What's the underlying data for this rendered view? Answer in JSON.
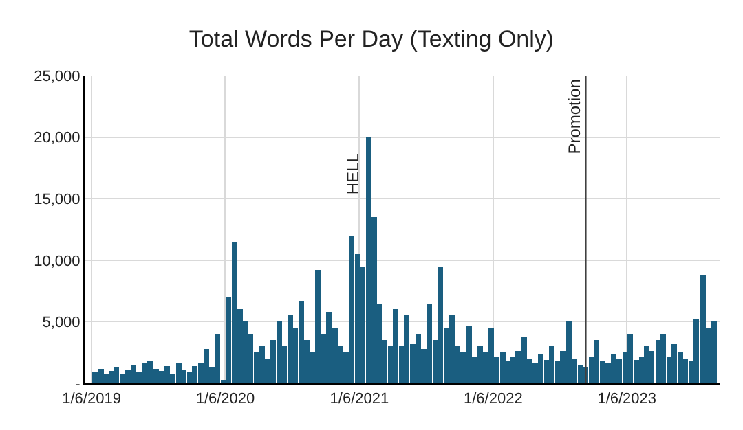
{
  "chart_data": {
    "type": "bar",
    "title": "Total Words Per Day (Texting Only)",
    "x": [
      "2019-01-15",
      "2019-02-01",
      "2019-02-15",
      "2019-03-01",
      "2019-03-15",
      "2019-04-01",
      "2019-04-15",
      "2019-05-01",
      "2019-05-15",
      "2019-06-01",
      "2019-06-15",
      "2019-07-01",
      "2019-07-15",
      "2019-08-01",
      "2019-08-15",
      "2019-09-01",
      "2019-09-15",
      "2019-10-01",
      "2019-10-15",
      "2019-11-01",
      "2019-11-15",
      "2019-12-01",
      "2019-12-15",
      "2020-01-01",
      "2020-01-15",
      "2020-02-01",
      "2020-02-15",
      "2020-03-01",
      "2020-03-15",
      "2020-04-01",
      "2020-04-15",
      "2020-05-01",
      "2020-05-15",
      "2020-06-01",
      "2020-06-15",
      "2020-07-01",
      "2020-07-15",
      "2020-08-01",
      "2020-08-15",
      "2020-09-01",
      "2020-09-15",
      "2020-10-01",
      "2020-10-15",
      "2020-11-01",
      "2020-11-15",
      "2020-12-01",
      "2020-12-15",
      "2021-01-01",
      "2021-01-15",
      "2021-02-01",
      "2021-02-15",
      "2021-03-01",
      "2021-03-15",
      "2021-04-01",
      "2021-04-15",
      "2021-05-01",
      "2021-05-15",
      "2021-06-01",
      "2021-06-15",
      "2021-07-01",
      "2021-07-15",
      "2021-08-01",
      "2021-08-15",
      "2021-09-01",
      "2021-09-15",
      "2021-10-01",
      "2021-10-15",
      "2021-11-01",
      "2021-11-15",
      "2021-12-01",
      "2021-12-15",
      "2022-01-01",
      "2022-01-15",
      "2022-02-01",
      "2022-02-15",
      "2022-03-01",
      "2022-03-15",
      "2022-04-01",
      "2022-04-15",
      "2022-05-01",
      "2022-05-15",
      "2022-06-01",
      "2022-06-15",
      "2022-07-01",
      "2022-07-15",
      "2022-08-01",
      "2022-08-15",
      "2022-09-01",
      "2022-09-15",
      "2022-10-01",
      "2022-10-15",
      "2022-11-01",
      "2022-11-15",
      "2022-12-01",
      "2022-12-15",
      "2023-01-01",
      "2023-01-15",
      "2023-02-01",
      "2023-02-15",
      "2023-03-01",
      "2023-03-15",
      "2023-04-01",
      "2023-04-15",
      "2023-05-01",
      "2023-05-15",
      "2023-06-01",
      "2023-06-15",
      "2023-07-01",
      "2023-07-15",
      "2023-08-01",
      "2023-08-15",
      "2023-09-01"
    ],
    "series": [
      {
        "color": "#1a5e80",
        "values": [
          900,
          1200,
          700,
          1000,
          1300,
          800,
          1100,
          1500,
          900,
          1600,
          1800,
          1200,
          1000,
          1400,
          800,
          1700,
          1100,
          900,
          1400,
          1600,
          2800,
          1300,
          4000,
          300,
          7000,
          11500,
          6000,
          5000,
          4000,
          2500,
          3000,
          2000,
          3500,
          5000,
          3000,
          5500,
          4500,
          6700,
          3500,
          2500,
          9200,
          4000,
          5800,
          4500,
          3000,
          2500,
          12000,
          10500,
          9500,
          20000,
          13500,
          6500,
          3500,
          3000,
          6000,
          3000,
          5500,
          3200,
          4000,
          2800,
          6500,
          3500,
          9500,
          4500,
          5500,
          3000,
          2500,
          4700,
          2200,
          3000,
          2500,
          4500,
          2200,
          2500,
          1800,
          2100,
          2600,
          3800,
          2000,
          1700,
          2400,
          1900,
          3000,
          1800,
          2600,
          5000,
          2000,
          1500,
          1300,
          2200,
          3500,
          1800,
          1600,
          2400,
          2000,
          2500,
          4000,
          1900,
          2200,
          3000,
          2600,
          3500,
          4000,
          2200,
          3200,
          2500,
          2000,
          1800,
          5200,
          8800,
          4500,
          5000
        ]
      }
    ],
    "xlim": [
      "2018-12-20",
      "2023-09-16"
    ],
    "xticks": [
      {
        "value": "2019-01-06",
        "label": "1/6/2019"
      },
      {
        "value": "2020-01-06",
        "label": "1/6/2020"
      },
      {
        "value": "2021-01-06",
        "label": "1/6/2021"
      },
      {
        "value": "2022-01-06",
        "label": "1/6/2022"
      },
      {
        "value": "2023-01-06",
        "label": "1/6/2023"
      }
    ],
    "ylim": [
      0,
      25000
    ],
    "yticks": [
      {
        "value": 0,
        "label": "-"
      },
      {
        "value": 5000,
        "label": "5,000"
      },
      {
        "value": 10000,
        "label": "10,000"
      },
      {
        "value": 15000,
        "label": "15,000"
      },
      {
        "value": 20000,
        "label": "20,000"
      },
      {
        "value": 25000,
        "label": "25,000"
      }
    ],
    "grid": true,
    "ref_lines": [
      {
        "axis": "x",
        "value": "2022-09-16",
        "label": "Promotion",
        "color": "#404040"
      }
    ],
    "annotations": [
      {
        "text": "HELL",
        "x": "2021-01-20",
        "y": 17000
      }
    ]
  }
}
